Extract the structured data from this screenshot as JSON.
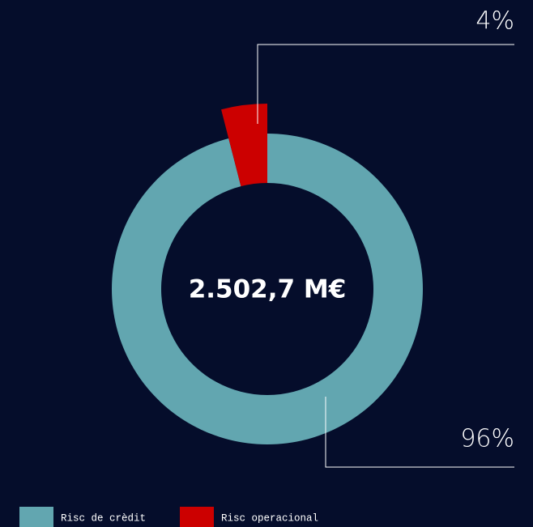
{
  "chart_data": {
    "type": "pie",
    "center_label": "2.502,7 M€",
    "categories": [
      "Risc de crèdit",
      "Risc operacional"
    ],
    "values": [
      96,
      4
    ],
    "value_labels": [
      "96%",
      "4%"
    ],
    "colors": [
      "#62a6b0",
      "#cc0000"
    ],
    "legend": "bottom-left"
  }
}
